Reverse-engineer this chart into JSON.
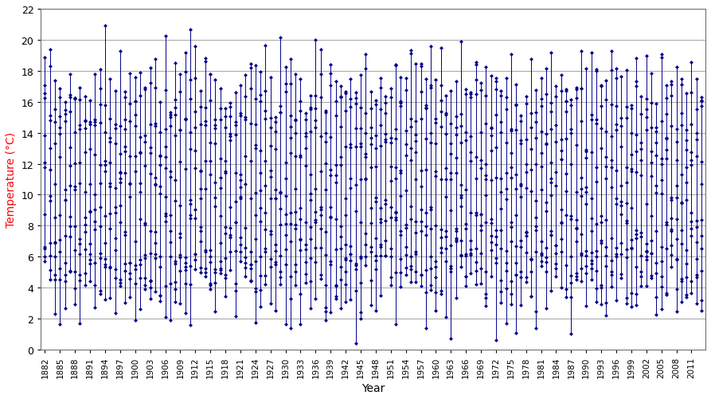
{
  "title": "",
  "xlabel": "Year",
  "ylabel": "Temperature (°C)",
  "ylim": [
    0,
    22
  ],
  "yticks": [
    0,
    2,
    4,
    6,
    8,
    10,
    12,
    14,
    16,
    18,
    20,
    22
  ],
  "start_year": 1882,
  "end_year": 2013,
  "color": "#00008B",
  "marker": "D",
  "markersize": 2.5,
  "linewidth": 0.7,
  "background_color": "#ffffff",
  "grid_color": "#808080",
  "xtick_years": [
    1882,
    1885,
    1888,
    1891,
    1894,
    1897,
    1900,
    1903,
    1906,
    1909,
    1912,
    1915,
    1918,
    1921,
    1924,
    1927,
    1930,
    1933,
    1936,
    1939,
    1942,
    1945,
    1948,
    1951,
    1954,
    1957,
    1960,
    1963,
    1966,
    1969,
    1972,
    1975,
    1978,
    1981,
    1984,
    1987,
    1990,
    1993,
    1996,
    1999,
    2002,
    2005,
    2008,
    2011
  ],
  "monthly_base": [
    4.5,
    4.8,
    6.5,
    8.8,
    11.8,
    14.8,
    16.8,
    16.5,
    14.0,
    10.8,
    7.2,
    5.0
  ],
  "annual_noise_std": 1.2,
  "monthly_noise_std": 1.5,
  "seed": 137
}
